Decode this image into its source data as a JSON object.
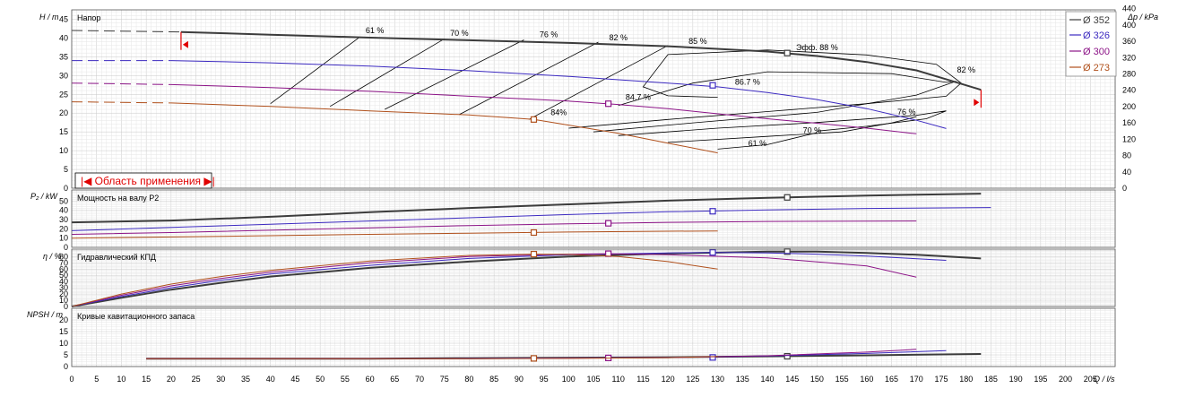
{
  "colors": {
    "d352": "#3c3c3c",
    "d326": "#3c2ac0",
    "d300": "#8c1487",
    "d273": "#b0501c",
    "grid_minor": "#e6e6e6",
    "grid_major": "#c8c8c8",
    "red": "#e00000",
    "iso": "#000000"
  },
  "axis": {
    "x_label": "Q / l/s",
    "x_ticks": [
      0,
      5,
      10,
      15,
      20,
      25,
      30,
      35,
      40,
      45,
      50,
      55,
      60,
      65,
      70,
      75,
      80,
      85,
      90,
      95,
      100,
      105,
      110,
      115,
      120,
      125,
      130,
      135,
      140,
      145,
      150,
      155,
      160,
      165,
      170,
      175,
      180,
      185,
      190,
      195,
      200,
      205
    ],
    "x_range": [
      0,
      210
    ]
  },
  "legend": {
    "items": [
      {
        "key": "d352",
        "label": "Ø 352"
      },
      {
        "key": "d326",
        "label": "Ø 326"
      },
      {
        "key": "d300",
        "label": "Ø 300"
      },
      {
        "key": "d273",
        "label": "Ø 273"
      }
    ]
  },
  "chart_data": [
    {
      "id": "head",
      "type": "line",
      "title": "Напор",
      "ylabel": "H / m",
      "ylabel2": "Δp / kPa",
      "ylim": [
        0,
        47.5
      ],
      "yticks": [
        0,
        5,
        10,
        15,
        20,
        25,
        30,
        35,
        40,
        45
      ],
      "y2ticks": [
        0,
        40,
        80,
        120,
        160,
        200,
        240,
        280,
        320,
        360,
        400,
        440
      ],
      "zone_label": "|◀ Область применения ▶|",
      "series": [
        {
          "key": "d352",
          "name": "Ø 352",
          "dash_x": [
            0,
            22
          ],
          "dash_y": [
            42,
            41.6
          ],
          "x": [
            22,
            40,
            60,
            80,
            100,
            120,
            140,
            150,
            160,
            170,
            175,
            183
          ],
          "y": [
            41.6,
            40.9,
            40.1,
            39.4,
            38.7,
            37.8,
            36.4,
            35.2,
            33.6,
            31.4,
            29.4,
            26.2
          ],
          "bep": [
            144,
            36
          ]
        },
        {
          "key": "d326",
          "name": "Ø 326",
          "dash_x": [
            0,
            20
          ],
          "dash_y": [
            34,
            34
          ],
          "x": [
            20,
            40,
            60,
            80,
            100,
            120,
            130,
            140,
            150,
            160,
            170,
            176
          ],
          "y": [
            34,
            33.4,
            32.5,
            31.3,
            29.8,
            28,
            27,
            25.5,
            23.6,
            21.2,
            18.1,
            15.9
          ],
          "bep": [
            129,
            27.4
          ]
        },
        {
          "key": "d300",
          "name": "Ø 300",
          "dash_x": [
            0,
            20
          ],
          "dash_y": [
            28,
            27.6
          ],
          "x": [
            20,
            40,
            60,
            80,
            100,
            110,
            120,
            130,
            140,
            150,
            160,
            170
          ],
          "y": [
            27.6,
            26.8,
            25.8,
            24.5,
            23.2,
            22.3,
            21.2,
            19.8,
            18.5,
            17.3,
            16,
            14.5
          ],
          "bep": [
            108,
            22.5
          ]
        },
        {
          "key": "d273",
          "name": "Ø 273",
          "dash_x": [
            0,
            20
          ],
          "dash_y": [
            23,
            22.7
          ],
          "x": [
            20,
            40,
            60,
            80,
            93,
            100,
            110,
            120,
            130
          ],
          "y": [
            22.7,
            21.8,
            20.6,
            19.5,
            18.3,
            16.8,
            14.6,
            12,
            9.4
          ],
          "bep": [
            93,
            18.3
          ]
        }
      ],
      "iso_efficiency": [
        {
          "label": "61 %",
          "x": [
            40,
            58
          ],
          "y": [
            22.5,
            40.3
          ]
        },
        {
          "label": "70 %",
          "x": [
            52,
            75
          ],
          "y": [
            21.8,
            39.8
          ]
        },
        {
          "label": "76 %",
          "x": [
            63,
            91
          ],
          "y": [
            21,
            39.5
          ]
        },
        {
          "label": "82 %",
          "x": [
            78,
            106
          ],
          "y": [
            19.6,
            38.9
          ]
        },
        {
          "label": "85 %",
          "x": [
            92,
            120
          ],
          "y": [
            18.3,
            38
          ]
        }
      ],
      "iso_labels_high": [
        {
          "text": "61 %",
          "x": 61,
          "y": 41.3
        },
        {
          "text": "70 %",
          "x": 78,
          "y": 40.6
        },
        {
          "text": "76 %",
          "x": 96,
          "y": 40.2
        },
        {
          "text": "82 %",
          "x": 110,
          "y": 39.4
        },
        {
          "text": "85 %",
          "x": 126,
          "y": 38.4
        },
        {
          "text": "Эфф. 88 %",
          "x": 150,
          "y": 36.7
        },
        {
          "text": "86.7 %",
          "x": 136,
          "y": 27.6
        },
        {
          "text": "84.7 %",
          "x": 114,
          "y": 23.5
        },
        {
          "text": "84%",
          "x": 98,
          "y": 19.4
        },
        {
          "text": "82 %",
          "x": 180,
          "y": 30.8
        },
        {
          "text": "76 %",
          "x": 168,
          "y": 19.6
        },
        {
          "text": "70 %",
          "x": 149,
          "y": 14.7
        },
        {
          "text": "61 %",
          "x": 138,
          "y": 11.2
        }
      ],
      "iso_right": [
        {
          "x": [
            100,
            120,
            140,
            160,
            176,
            179,
            174,
            160,
            140,
            120,
            115,
            120,
            130
          ],
          "y": [
            16,
            18.3,
            20.4,
            22.5,
            24.5,
            28,
            33,
            35.5,
            36.8,
            35.6,
            27,
            24.6,
            24.2
          ]
        },
        {
          "x": [
            105,
            125,
            150,
            170,
            178,
            176,
            165,
            140,
            125,
            115,
            110
          ],
          "y": [
            15,
            17.4,
            20.2,
            24.8,
            28.5,
            28.2,
            30.5,
            31,
            28,
            24,
            22
          ]
        },
        {
          "x": [
            110,
            130,
            150,
            170,
            176,
            172,
            160,
            150
          ],
          "y": [
            14,
            16,
            17.5,
            19.4,
            20.6,
            18.5,
            16.5,
            15.2
          ]
        },
        {
          "x": [
            120,
            140,
            155,
            165,
            170
          ],
          "y": [
            12.2,
            13.8,
            15,
            17.4,
            19
          ]
        },
        {
          "x": [
            130,
            140,
            145,
            150
          ],
          "y": [
            10.4,
            11.6,
            13.2,
            14.8
          ]
        }
      ]
    },
    {
      "id": "power",
      "type": "line",
      "title": "Мощность на валу P2",
      "ylabel": "P₂ / kW",
      "ylim": [
        0,
        62
      ],
      "yticks": [
        0,
        10,
        20,
        30,
        40,
        50
      ],
      "series": [
        {
          "key": "d352",
          "name": "Ø 352",
          "x": [
            0,
            20,
            40,
            60,
            80,
            100,
            120,
            140,
            160,
            183
          ],
          "y": [
            27,
            29,
            33,
            38,
            42.5,
            46.5,
            50.5,
            53.5,
            56,
            58
          ],
          "bep": [
            144,
            54
          ]
        },
        {
          "key": "d326",
          "name": "Ø 326",
          "x": [
            0,
            20,
            40,
            60,
            80,
            100,
            120,
            140,
            160,
            185
          ],
          "y": [
            18,
            21.5,
            25,
            28.5,
            32,
            35.5,
            38.5,
            40.5,
            42,
            43
          ],
          "bep": [
            129,
            39
          ]
        },
        {
          "key": "d300",
          "name": "Ø 300",
          "x": [
            0,
            20,
            40,
            60,
            80,
            100,
            120,
            140,
            170
          ],
          "y": [
            14,
            16,
            18.5,
            21,
            23.5,
            25.5,
            27,
            28,
            28.5
          ],
          "bep": [
            108,
            26
          ]
        },
        {
          "key": "d273",
          "name": "Ø 273",
          "x": [
            0,
            20,
            40,
            60,
            80,
            100,
            120,
            130
          ],
          "y": [
            10,
            11.2,
            12.6,
            14,
            15.3,
            16.6,
            17.4,
            17.6
          ],
          "bep": [
            93,
            16
          ]
        }
      ]
    },
    {
      "id": "efficiency",
      "type": "line",
      "title": "Гидравлический КПД",
      "ylabel": "η / %",
      "ylim": [
        0,
        92
      ],
      "yticks": [
        0,
        10,
        20,
        30,
        40,
        50,
        60,
        70,
        80
      ],
      "series": [
        {
          "key": "d352",
          "name": "Ø 352",
          "x": [
            0,
            10,
            20,
            30,
            40,
            60,
            80,
            100,
            120,
            140,
            150,
            160,
            170,
            183
          ],
          "y": [
            0,
            14,
            27,
            38,
            48,
            62,
            72,
            80,
            85,
            88,
            88,
            86,
            83,
            77
          ],
          "bep": [
            144,
            88
          ]
        },
        {
          "key": "d326",
          "name": "Ø 326",
          "x": [
            0,
            10,
            20,
            30,
            40,
            60,
            80,
            100,
            120,
            130,
            140,
            150,
            160,
            176
          ],
          "y": [
            0,
            16,
            30,
            42,
            52,
            66,
            77,
            83,
            86,
            86.7,
            86,
            84,
            81,
            74
          ],
          "bep": [
            129,
            86.7
          ]
        },
        {
          "key": "d300",
          "name": "Ø 300",
          "x": [
            0,
            10,
            20,
            30,
            40,
            60,
            80,
            100,
            108,
            120,
            140,
            160,
            170
          ],
          "y": [
            0,
            18,
            33,
            45,
            55,
            70,
            80,
            84,
            84.7,
            83,
            78,
            65,
            47
          ],
          "bep": [
            108,
            84.7
          ]
        },
        {
          "key": "d273",
          "name": "Ø 273",
          "x": [
            0,
            10,
            20,
            30,
            40,
            60,
            80,
            93,
            100,
            110,
            120,
            130
          ],
          "y": [
            0,
            20,
            36,
            48,
            58,
            73,
            82,
            84,
            83.5,
            80,
            72,
            60
          ],
          "bep": [
            93,
            84
          ]
        }
      ]
    },
    {
      "id": "npsh",
      "type": "line",
      "title": "Кривые кавитационного запаса",
      "ylabel": "NPSH / m",
      "ylim": [
        0,
        25
      ],
      "yticks": [
        0,
        5,
        10,
        15,
        20
      ],
      "series": [
        {
          "key": "d352",
          "name": "Ø 352",
          "x": [
            15,
            40,
            60,
            80,
            100,
            120,
            140,
            160,
            183
          ],
          "y": [
            3.4,
            3.4,
            3.4,
            3.6,
            3.8,
            4,
            4.4,
            4.8,
            5.4
          ],
          "bep": [
            144,
            4.4
          ]
        },
        {
          "key": "d326",
          "name": "Ø 326",
          "x": [
            15,
            40,
            60,
            80,
            100,
            120,
            140,
            160,
            176
          ],
          "y": [
            3.4,
            3.4,
            3.4,
            3.5,
            3.7,
            3.9,
            4.5,
            5.6,
            6.8
          ],
          "bep": [
            129,
            3.9
          ]
        },
        {
          "key": "d300",
          "name": "Ø 300",
          "x": [
            15,
            40,
            60,
            80,
            100,
            120,
            140,
            160,
            170
          ],
          "y": [
            3.4,
            3.4,
            3.4,
            3.4,
            3.6,
            3.8,
            4.6,
            6.2,
            7.4
          ],
          "bep": [
            108,
            3.7
          ]
        },
        {
          "key": "d273",
          "name": "Ø 273",
          "x": [
            15,
            40,
            60,
            80,
            100,
            120,
            130
          ],
          "y": [
            3.4,
            3.4,
            3.4,
            3.4,
            3.5,
            3.8,
            4.3
          ],
          "bep": [
            93,
            3.5
          ]
        }
      ]
    }
  ]
}
